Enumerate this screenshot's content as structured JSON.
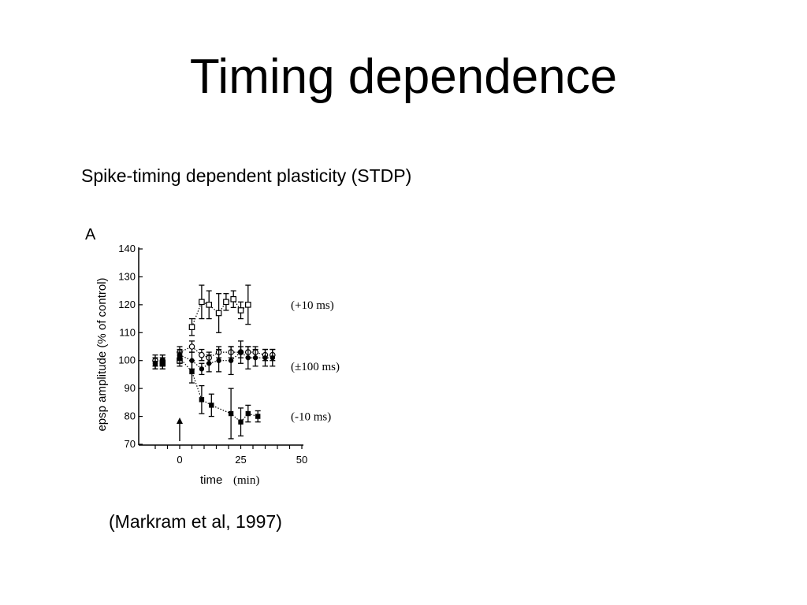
{
  "slide": {
    "title": "Timing dependence",
    "subtitle": "Spike-timing dependent plasticity (STDP)",
    "citation": "(Markram et al, 1997)"
  },
  "chart_data": {
    "type": "scatter",
    "panel_label": "A",
    "xlabel": "time",
    "xlabel_unit": "(min)",
    "ylabel": "epsp amplitude (% of control)",
    "xlim": [
      -12,
      50
    ],
    "ylim": [
      70,
      140
    ],
    "x_ticks": [
      0,
      25,
      50
    ],
    "y_ticks": [
      70,
      80,
      90,
      100,
      110,
      120,
      130,
      140
    ],
    "grid": false,
    "annotations": [
      {
        "type": "arrow",
        "x": 0,
        "label": ""
      }
    ],
    "series": [
      {
        "name": "(+10 ms)",
        "marker": "open-square",
        "x": [
          -7,
          0,
          5,
          9,
          12,
          16,
          19,
          22,
          25,
          28
        ],
        "y": [
          99,
          100,
          112,
          121,
          120,
          117,
          121,
          122,
          118,
          120
        ],
        "err": [
          2,
          2,
          3,
          6,
          5,
          7,
          3,
          3,
          3,
          7
        ],
        "connected_from_index": 2
      },
      {
        "name": "(±100 ms)",
        "marker": "open-circle",
        "x": [
          -10,
          -7,
          0,
          5,
          9,
          12,
          16,
          21,
          25,
          28,
          31,
          35,
          38
        ],
        "y": [
          100,
          100,
          103,
          105,
          102,
          101,
          103,
          103,
          103,
          103,
          103,
          102,
          102
        ],
        "err": [
          2,
          2,
          2,
          2,
          2,
          2,
          2,
          2,
          2,
          2,
          2,
          2,
          2
        ],
        "connected_from_index": 2
      },
      {
        "name": "(±100 ms)",
        "marker": "filled-circle",
        "x": [
          -10,
          -7,
          0,
          5,
          9,
          12,
          16,
          21,
          25,
          28,
          31,
          35,
          38
        ],
        "y": [
          99,
          100,
          102,
          100,
          97,
          99,
          100,
          100,
          103,
          101,
          101,
          101,
          101
        ],
        "err": [
          2,
          2,
          2,
          3,
          2,
          3,
          4,
          5,
          4,
          4,
          3,
          3,
          3
        ],
        "connected_from_index": 2
      },
      {
        "name": "(-10 ms)",
        "marker": "filled-square",
        "x": [
          -10,
          -7,
          0,
          5,
          9,
          13,
          21,
          25,
          28,
          32
        ],
        "y": [
          99,
          99,
          101,
          96,
          86,
          84,
          81,
          78,
          81,
          80
        ],
        "err": [
          2,
          2,
          2,
          4,
          5,
          4,
          9,
          5,
          3,
          2
        ],
        "connected_from_index": 2
      }
    ]
  }
}
